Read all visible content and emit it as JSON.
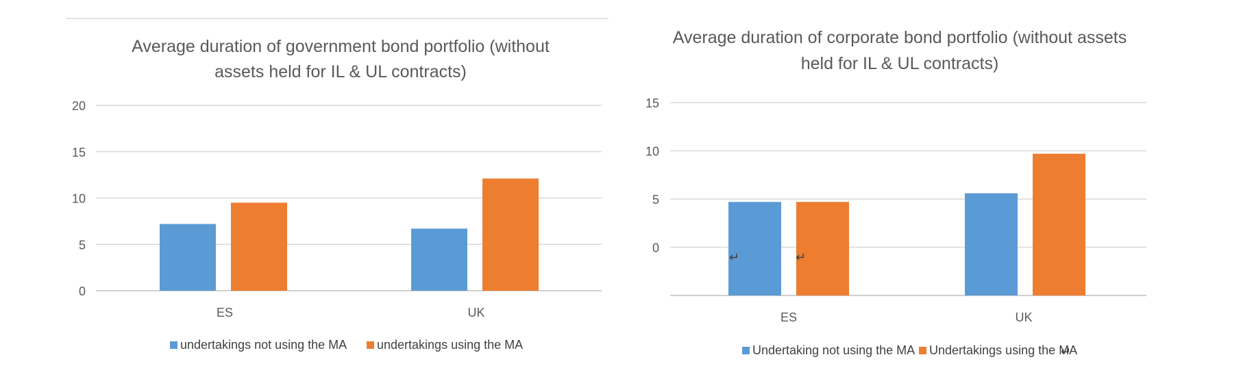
{
  "chart_data": [
    {
      "type": "bar",
      "title_lines": [
        "Average duration of government bond portfolio (without",
        "assets held for IL & UL contracts)"
      ],
      "categories": [
        "ES",
        "UK"
      ],
      "series": [
        {
          "name": "undertakings not using the MA",
          "values": [
            7.2,
            6.7
          ],
          "color": "#5b9bd5"
        },
        {
          "name": "undertakings using the MA",
          "values": [
            9.5,
            12.1
          ],
          "color": "#ed7d31"
        }
      ],
      "ylim": [
        0,
        20
      ],
      "yticks": [
        "0",
        "5",
        "10",
        "15",
        "20"
      ],
      "grid": true,
      "legend": "bottom"
    },
    {
      "type": "bar",
      "title_lines": [
        "Average duration of corporate bond portfolio (without assets",
        "held for IL & UL contracts)"
      ],
      "categories": [
        "ES",
        "UK"
      ],
      "series": [
        {
          "name": "Undertaking not using the MA",
          "values": [
            4.7,
            5.6
          ],
          "color": "#5b9bd5"
        },
        {
          "name": "Undertakings using the MA",
          "values": [
            4.7,
            9.7
          ],
          "color": "#ed7d31"
        }
      ],
      "ylim": [
        -5,
        15
      ],
      "yticks": [
        "0",
        "5",
        "10",
        "15"
      ],
      "grid": true,
      "legend": "bottom"
    }
  ]
}
